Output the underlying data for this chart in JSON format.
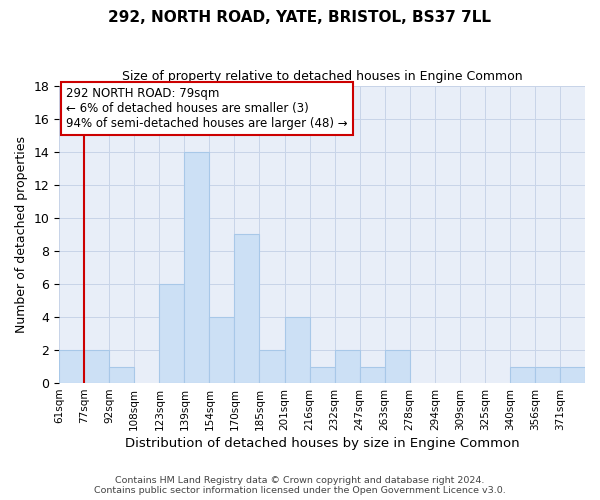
{
  "title": "292, NORTH ROAD, YATE, BRISTOL, BS37 7LL",
  "subtitle": "Size of property relative to detached houses in Engine Common",
  "xlabel": "Distribution of detached houses by size in Engine Common",
  "ylabel": "Number of detached properties",
  "bin_labels": [
    "61sqm",
    "77sqm",
    "92sqm",
    "108sqm",
    "123sqm",
    "139sqm",
    "154sqm",
    "170sqm",
    "185sqm",
    "201sqm",
    "216sqm",
    "232sqm",
    "247sqm",
    "263sqm",
    "278sqm",
    "294sqm",
    "309sqm",
    "325sqm",
    "340sqm",
    "356sqm",
    "371sqm"
  ],
  "bar_heights": [
    2,
    2,
    1,
    0,
    6,
    14,
    4,
    9,
    2,
    4,
    1,
    2,
    1,
    2,
    0,
    0,
    0,
    0,
    1,
    1,
    1
  ],
  "bar_color": "#cce0f5",
  "bar_edge_color": "#a8c8e8",
  "vline_x_index": 1,
  "vline_color": "#cc0000",
  "ylim": [
    0,
    18
  ],
  "yticks": [
    0,
    2,
    4,
    6,
    8,
    10,
    12,
    14,
    16,
    18
  ],
  "annotation_title": "292 NORTH ROAD: 79sqm",
  "annotation_line1": "← 6% of detached houses are smaller (3)",
  "annotation_line2": "94% of semi-detached houses are larger (48) →",
  "annotation_box_color": "#ffffff",
  "annotation_box_edge": "#cc0000",
  "footer1": "Contains HM Land Registry data © Crown copyright and database right 2024.",
  "footer2": "Contains public sector information licensed under the Open Government Licence v3.0.",
  "bg_color": "#e8eef8"
}
